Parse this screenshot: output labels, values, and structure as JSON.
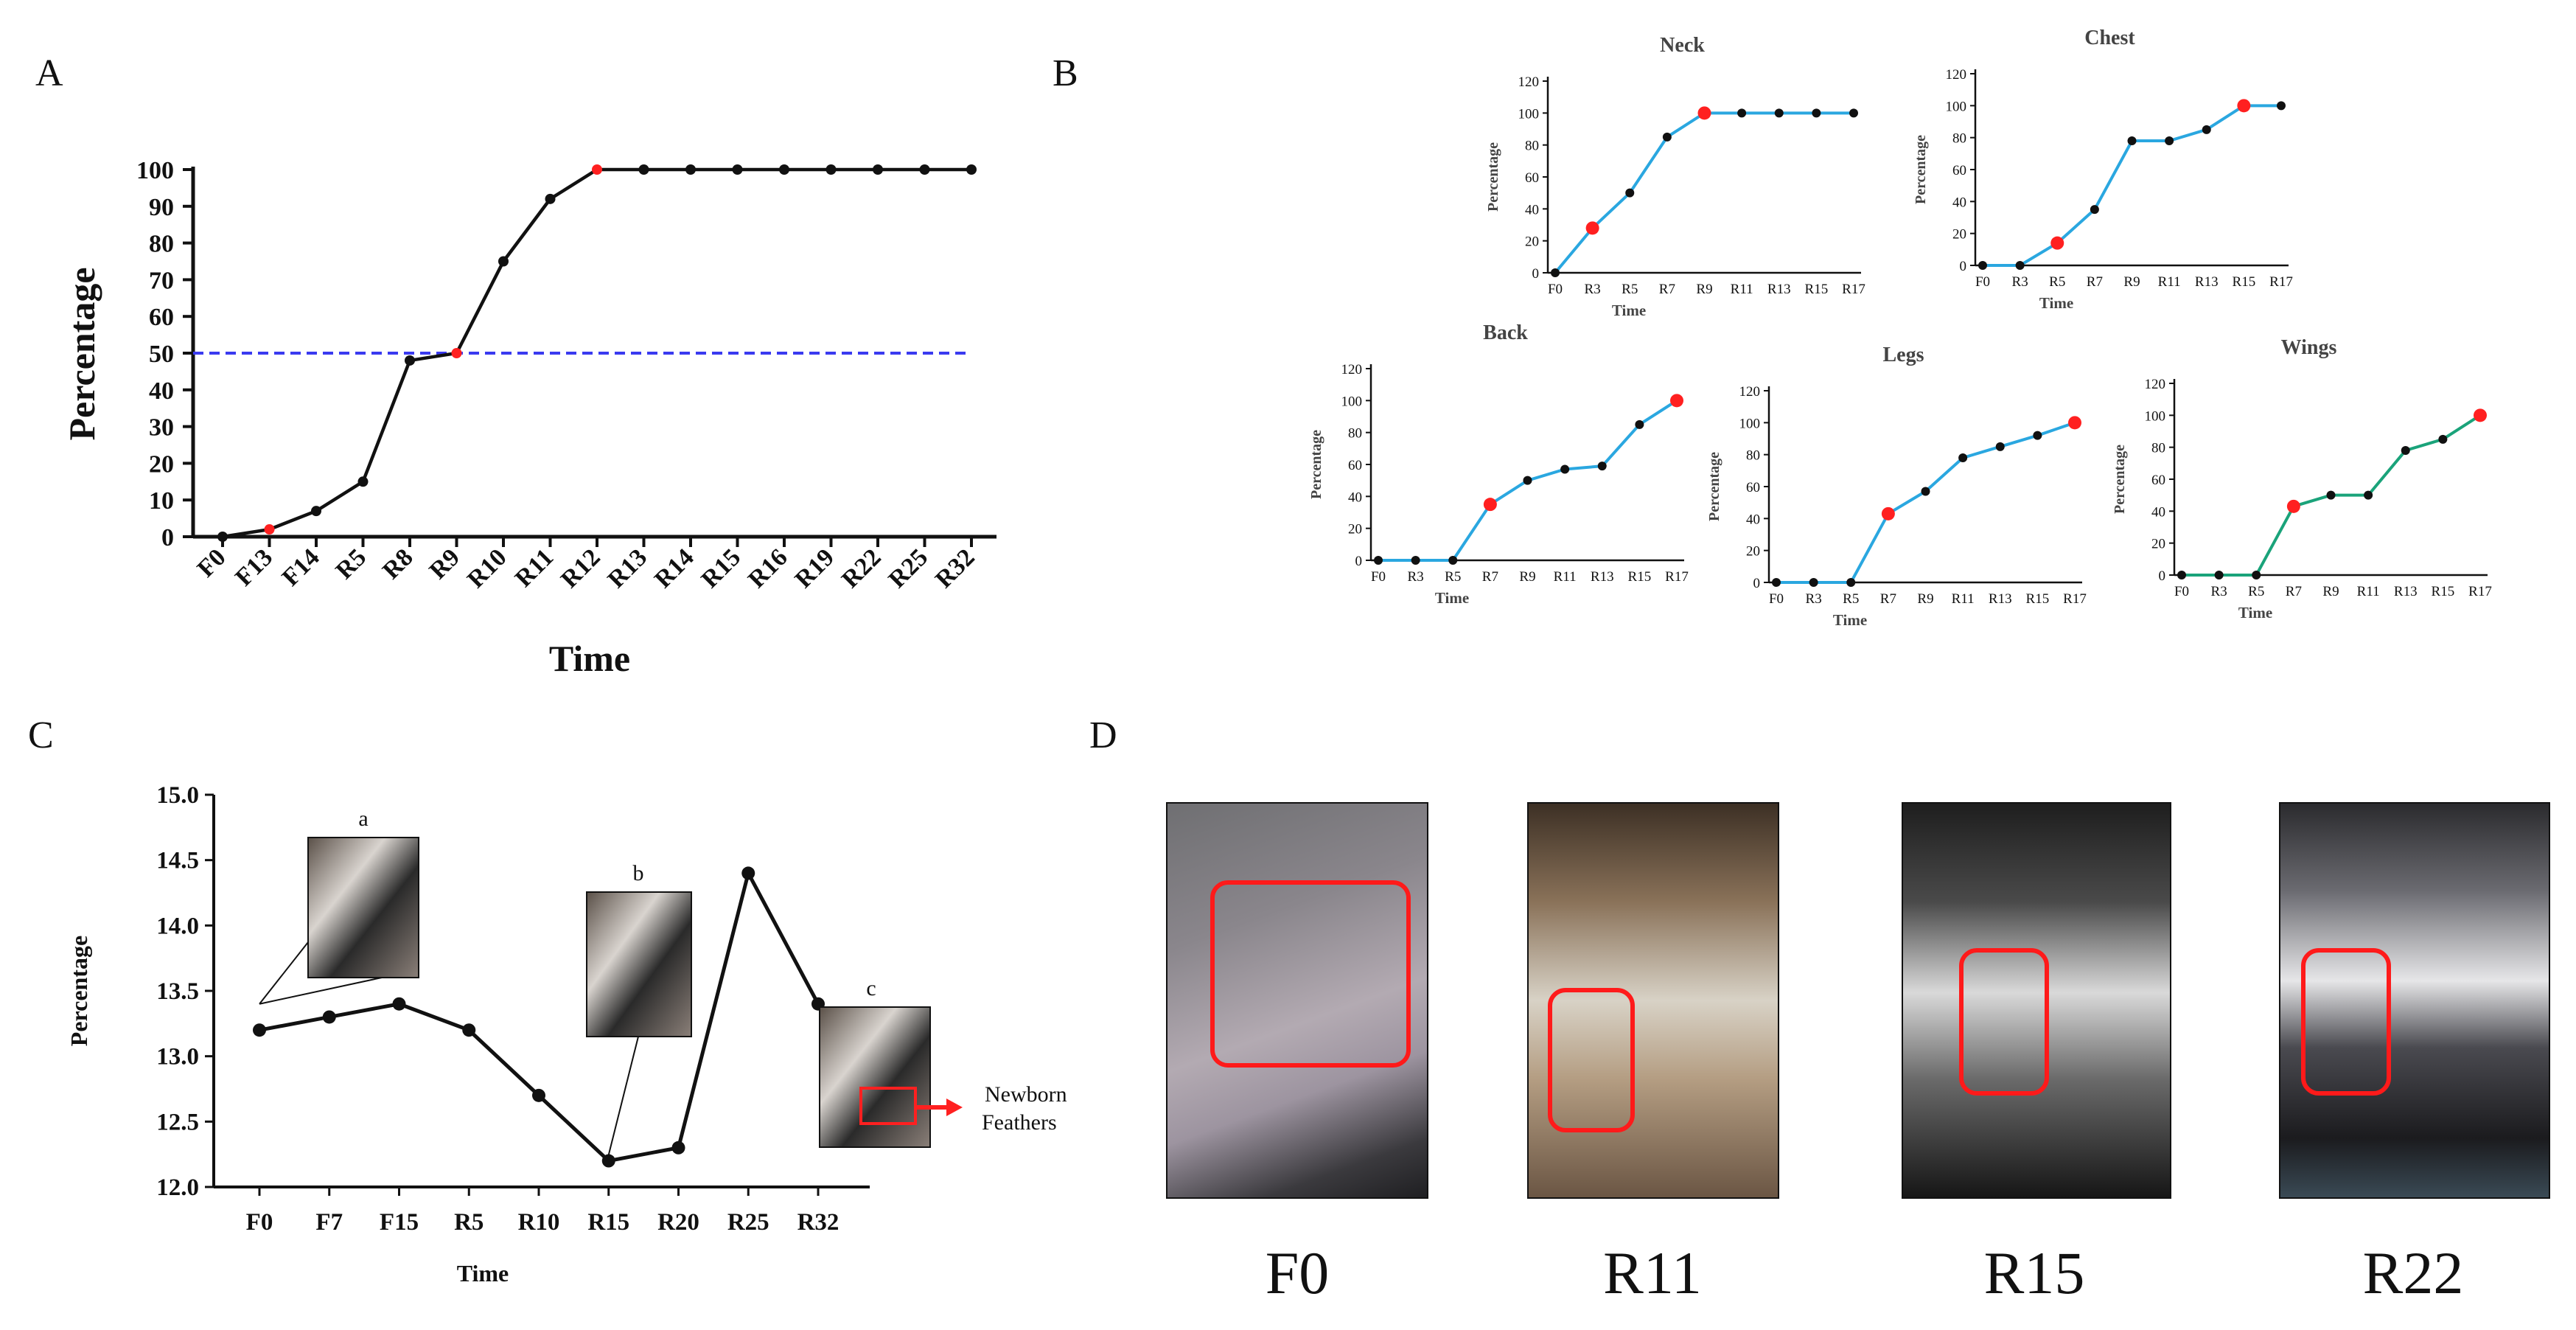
{
  "panels": {
    "A": "A",
    "B": "B",
    "C": "C",
    "D": "D"
  },
  "colors": {
    "blue_line": "#2aa7e0",
    "green_line": "#1aa37a",
    "red_point": "#ff2020",
    "black": "#111111",
    "dash_blue": "#3a3af0"
  },
  "chart_data": [
    {
      "id": "A",
      "type": "line",
      "title": "",
      "xlabel": "Time",
      "ylabel": "Percentage",
      "categories": [
        "F0",
        "F13",
        "F14",
        "R5",
        "R8",
        "R9",
        "R10",
        "R11",
        "R12",
        "R13",
        "R14",
        "R15",
        "R16",
        "R19",
        "R22",
        "R25",
        "R32"
      ],
      "values": [
        0,
        2,
        7,
        15,
        48,
        50,
        75,
        92,
        100,
        100,
        100,
        100,
        100,
        100,
        100,
        100,
        100
      ],
      "red_points": [
        1,
        5,
        8
      ],
      "ylim": [
        0,
        100
      ],
      "yticks": [
        0,
        10,
        20,
        30,
        40,
        50,
        60,
        70,
        80,
        90,
        100
      ],
      "reference_line": 50
    },
    {
      "id": "B-Neck",
      "type": "line",
      "title": "Neck",
      "xlabel": "Time",
      "ylabel": "Percentage",
      "categories": [
        "F0",
        "R3",
        "R5",
        "R7",
        "R9",
        "R11",
        "R13",
        "R15",
        "R17"
      ],
      "values": [
        0,
        28,
        50,
        85,
        100,
        100,
        100,
        100,
        100
      ],
      "red_points": [
        1,
        4
      ],
      "ylim": [
        0,
        120
      ],
      "yticks": [
        0,
        20,
        40,
        60,
        80,
        100,
        120
      ],
      "color": "blue"
    },
    {
      "id": "B-Chest",
      "type": "line",
      "title": "Chest",
      "xlabel": "Time",
      "ylabel": "Percentage",
      "categories": [
        "F0",
        "R3",
        "R5",
        "R7",
        "R9",
        "R11",
        "R13",
        "R15",
        "R17"
      ],
      "values": [
        0,
        0,
        14,
        35,
        78,
        78,
        85,
        100,
        100
      ],
      "red_points": [
        2,
        7
      ],
      "ylim": [
        0,
        120
      ],
      "yticks": [
        0,
        20,
        40,
        60,
        80,
        100,
        120
      ],
      "color": "blue"
    },
    {
      "id": "B-Back",
      "type": "line",
      "title": "Back",
      "xlabel": "Time",
      "ylabel": "Percentage",
      "categories": [
        "F0",
        "R3",
        "R5",
        "R7",
        "R9",
        "R11",
        "R13",
        "R15",
        "R17"
      ],
      "values": [
        0,
        0,
        0,
        35,
        50,
        57,
        59,
        85,
        100
      ],
      "red_points": [
        3,
        8
      ],
      "ylim": [
        0,
        120
      ],
      "yticks": [
        0,
        20,
        40,
        60,
        80,
        100,
        120
      ],
      "color": "blue"
    },
    {
      "id": "B-Legs",
      "type": "line",
      "title": "Legs",
      "xlabel": "Time",
      "ylabel": "Percentage",
      "categories": [
        "F0",
        "R3",
        "R5",
        "R7",
        "R9",
        "R11",
        "R13",
        "R15",
        "R17"
      ],
      "values": [
        0,
        0,
        0,
        43,
        57,
        78,
        85,
        92,
        100
      ],
      "red_points": [
        3,
        8
      ],
      "ylim": [
        0,
        120
      ],
      "yticks": [
        0,
        20,
        40,
        60,
        80,
        100,
        120
      ],
      "color": "blue"
    },
    {
      "id": "B-Wings",
      "type": "line",
      "title": "Wings",
      "xlabel": "Time",
      "ylabel": "Percentage",
      "categories": [
        "F0",
        "R3",
        "R5",
        "R7",
        "R9",
        "R11",
        "R13",
        "R15",
        "R17"
      ],
      "values": [
        0,
        0,
        0,
        43,
        50,
        50,
        78,
        85,
        100
      ],
      "red_points": [
        3,
        8
      ],
      "ylim": [
        0,
        120
      ],
      "yticks": [
        0,
        20,
        40,
        60,
        80,
        100,
        120
      ],
      "color": "green"
    },
    {
      "id": "C",
      "type": "line",
      "title": "",
      "xlabel": "Time",
      "ylabel": "Percentage",
      "categories": [
        "F0",
        "F7",
        "F15",
        "R5",
        "R10",
        "R15",
        "R20",
        "R25",
        "R32"
      ],
      "values": [
        13.2,
        13.3,
        13.4,
        13.2,
        12.7,
        12.2,
        12.3,
        14.4,
        13.4
      ],
      "ylim": [
        12.0,
        15.0
      ],
      "yticks": [
        "12.0",
        "12.5",
        "13.0",
        "13.5",
        "14.0",
        "14.5",
        "15.0"
      ],
      "insets": [
        "a",
        "b",
        "c"
      ],
      "annotation": [
        "Newborn",
        "Feathers"
      ]
    }
  ],
  "photos": {
    "labels": [
      "F0",
      "R11",
      "R15",
      "R22"
    ]
  }
}
